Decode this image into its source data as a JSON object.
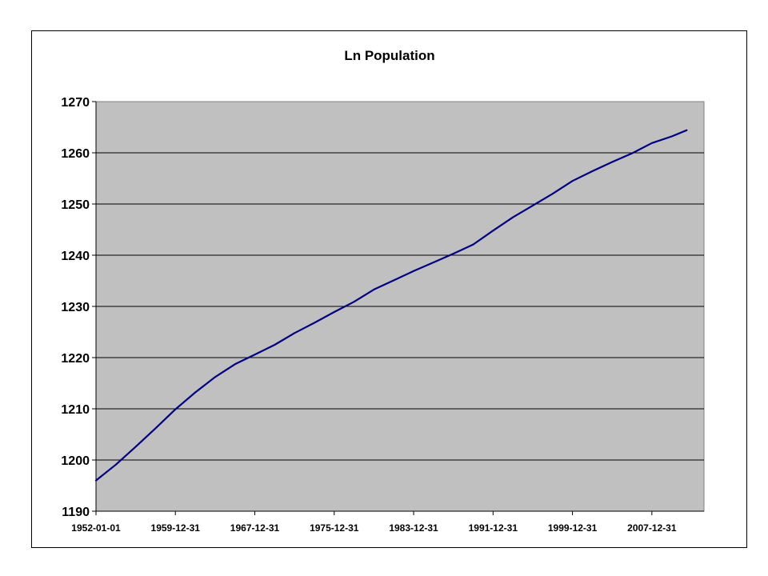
{
  "chart_data": {
    "type": "line",
    "title": "Ln Population",
    "xlabel": "",
    "ylabel": "",
    "ylim": [
      1190,
      1270
    ],
    "yticks": [
      1190,
      1200,
      1210,
      1220,
      1230,
      1240,
      1250,
      1260,
      1270
    ],
    "xlim": [
      "1952-01-01",
      "2013-04-01"
    ],
    "xticks": [
      "1952-01-01",
      "1959-12-31",
      "1967-12-31",
      "1975-12-31",
      "1983-12-31",
      "1991-12-31",
      "1999-12-31",
      "2007-12-31"
    ],
    "grid": true,
    "legend": "none",
    "colors": {
      "line": "#000080",
      "plot_area": "#c0c0c0",
      "gridline": "#000000"
    },
    "series": [
      {
        "values": [
          [
            "1952-01-01",
            1196.0
          ],
          [
            "1954-01-01",
            1199.1
          ],
          [
            "1956-01-01",
            1202.6
          ],
          [
            "1958-01-01",
            1206.2
          ],
          [
            "1960-01-01",
            1209.9
          ],
          [
            "1962-01-01",
            1213.2
          ],
          [
            "1964-01-01",
            1216.2
          ],
          [
            "1966-01-01",
            1218.7
          ],
          [
            "1968-01-01",
            1220.6
          ],
          [
            "1970-01-01",
            1222.5
          ],
          [
            "1972-01-01",
            1224.8
          ],
          [
            "1974-01-01",
            1226.8
          ],
          [
            "1976-01-01",
            1228.9
          ],
          [
            "1978-01-01",
            1230.9
          ],
          [
            "1980-01-01",
            1233.3
          ],
          [
            "1982-01-01",
            1235.1
          ],
          [
            "1984-01-01",
            1236.9
          ],
          [
            "1986-01-01",
            1238.6
          ],
          [
            "1988-01-01",
            1240.3
          ],
          [
            "1990-01-01",
            1242.1
          ],
          [
            "1992-01-01",
            1244.8
          ],
          [
            "1994-01-01",
            1247.4
          ],
          [
            "1996-01-01",
            1249.7
          ],
          [
            "1998-01-01",
            1252.0
          ],
          [
            "2000-01-01",
            1254.5
          ],
          [
            "2002-01-01",
            1256.4
          ],
          [
            "2004-01-01",
            1258.2
          ],
          [
            "2006-01-01",
            1259.9
          ],
          [
            "2008-01-01",
            1261.9
          ],
          [
            "2010-01-01",
            1263.2
          ],
          [
            "2011-07-01",
            1264.4
          ]
        ]
      }
    ]
  }
}
